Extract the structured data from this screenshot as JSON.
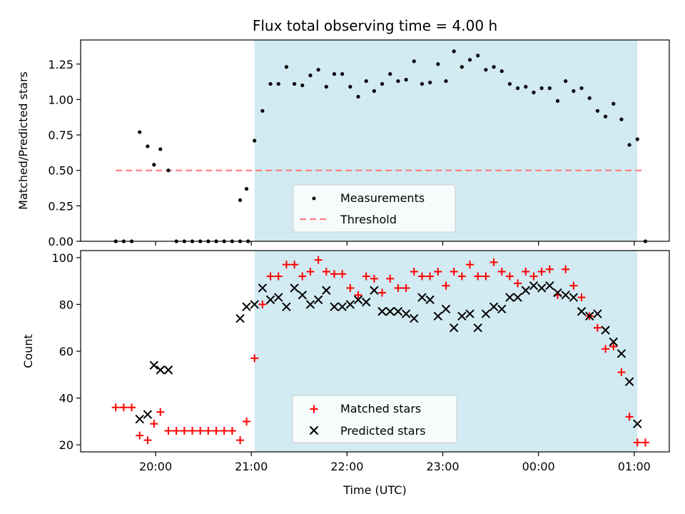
{
  "chart_data": [
    {
      "type": "scatter",
      "title": "Flux total observing time = 4.00 h",
      "ylabel": "Matched/Predicted stars",
      "ylim": [
        0,
        1.42
      ],
      "yticks": [
        "0.00",
        "0.25",
        "0.50",
        "0.75",
        "1.00",
        "1.25"
      ],
      "shaded_span": {
        "x": [
          "2024-01-01T21:02",
          "2024-01-02T01:02"
        ],
        "color": "#add8e6"
      },
      "series": [
        {
          "name": "Measurements",
          "marker": "dot",
          "color": "#000000",
          "points": [
            [
              "2024-01-01T19:35",
              0
            ],
            [
              "2024-01-01T19:40",
              0
            ],
            [
              "2024-01-01T19:45",
              0
            ],
            [
              "2024-01-01T19:50",
              0.77
            ],
            [
              "2024-01-01T19:55",
              0.67
            ],
            [
              "2024-01-01T19:59",
              0.54
            ],
            [
              "2024-01-01T20:03",
              0.65
            ],
            [
              "2024-01-01T20:08",
              0.5
            ],
            [
              "2024-01-01T20:13",
              0
            ],
            [
              "2024-01-01T20:18",
              0
            ],
            [
              "2024-01-01T20:23",
              0
            ],
            [
              "2024-01-01T20:28",
              0
            ],
            [
              "2024-01-01T20:33",
              0
            ],
            [
              "2024-01-01T20:38",
              0
            ],
            [
              "2024-01-01T20:43",
              0
            ],
            [
              "2024-01-01T20:48",
              0
            ],
            [
              "2024-01-01T20:53",
              0
            ],
            [
              "2024-01-01T20:58",
              0
            ],
            [
              "2024-01-01T20:53",
              0.29
            ],
            [
              "2024-01-01T20:57",
              0.37
            ],
            [
              "2024-01-01T21:02",
              0.71
            ],
            [
              "2024-01-01T21:07",
              0.92
            ],
            [
              "2024-01-01T21:12",
              1.11
            ],
            [
              "2024-01-01T21:17",
              1.11
            ],
            [
              "2024-01-01T21:22",
              1.23
            ],
            [
              "2024-01-01T21:27",
              1.11
            ],
            [
              "2024-01-01T21:32",
              1.1
            ],
            [
              "2024-01-01T21:37",
              1.17
            ],
            [
              "2024-01-01T21:42",
              1.21
            ],
            [
              "2024-01-01T21:47",
              1.09
            ],
            [
              "2024-01-01T21:52",
              1.18
            ],
            [
              "2024-01-01T21:57",
              1.18
            ],
            [
              "2024-01-01T22:02",
              1.09
            ],
            [
              "2024-01-01T22:07",
              1.02
            ],
            [
              "2024-01-01T22:12",
              1.13
            ],
            [
              "2024-01-01T22:17",
              1.06
            ],
            [
              "2024-01-01T22:22",
              1.11
            ],
            [
              "2024-01-01T22:27",
              1.18
            ],
            [
              "2024-01-01T22:32",
              1.13
            ],
            [
              "2024-01-01T22:37",
              1.14
            ],
            [
              "2024-01-01T22:42",
              1.27
            ],
            [
              "2024-01-01T22:47",
              1.11
            ],
            [
              "2024-01-01T22:52",
              1.12
            ],
            [
              "2024-01-01T22:57",
              1.25
            ],
            [
              "2024-01-01T23:02",
              1.13
            ],
            [
              "2024-01-01T23:07",
              1.34
            ],
            [
              "2024-01-01T23:12",
              1.23
            ],
            [
              "2024-01-01T23:17",
              1.28
            ],
            [
              "2024-01-01T23:22",
              1.31
            ],
            [
              "2024-01-01T23:27",
              1.21
            ],
            [
              "2024-01-01T23:32",
              1.23
            ],
            [
              "2024-01-01T23:37",
              1.2
            ],
            [
              "2024-01-01T23:42",
              1.11
            ],
            [
              "2024-01-01T23:47",
              1.08
            ],
            [
              "2024-01-01T23:52",
              1.09
            ],
            [
              "2024-01-01T23:57",
              1.05
            ],
            [
              "2024-01-02T00:02",
              1.08
            ],
            [
              "2024-01-02T00:07",
              1.08
            ],
            [
              "2024-01-02T00:12",
              0.99
            ],
            [
              "2024-01-02T00:17",
              1.13
            ],
            [
              "2024-01-02T00:22",
              1.06
            ],
            [
              "2024-01-02T00:27",
              1.08
            ],
            [
              "2024-01-02T00:32",
              1.01
            ],
            [
              "2024-01-02T00:37",
              0.92
            ],
            [
              "2024-01-02T00:42",
              0.88
            ],
            [
              "2024-01-02T00:47",
              0.97
            ],
            [
              "2024-01-02T00:52",
              0.86
            ],
            [
              "2024-01-02T00:57",
              0.68
            ],
            [
              "2024-01-02T01:02",
              0.72
            ],
            [
              "2024-01-02T01:07",
              0
            ]
          ]
        },
        {
          "name": "Threshold",
          "marker": "dashed-line",
          "color": "#ff7777",
          "points": [
            [
              "2024-01-01T19:35",
              0.5
            ],
            [
              "2024-01-02T01:07",
              0.5
            ]
          ]
        }
      ],
      "legend": "lower-center"
    },
    {
      "type": "scatter",
      "xlabel": "Time (UTC)",
      "ylabel": "Count",
      "ylim": [
        17,
        103
      ],
      "yticks": [
        "20",
        "40",
        "60",
        "80",
        "100"
      ],
      "xticks": [
        {
          "t": "2024-01-01T20:00",
          "label": "20:00"
        },
        {
          "t": "2024-01-01T21:00",
          "label": "21:00"
        },
        {
          "t": "2024-01-01T22:00",
          "label": "22:00"
        },
        {
          "t": "2024-01-01T23:00",
          "label": "23:00"
        },
        {
          "t": "2024-01-02T00:00",
          "label": "00:00"
        },
        {
          "t": "2024-01-02T01:00",
          "label": "01:00"
        }
      ],
      "xlim": [
        "2024-01-01T19:13",
        "2024-01-02T01:22"
      ],
      "shaded_span": {
        "x": [
          "2024-01-01T21:02",
          "2024-01-02T01:02"
        ],
        "color": "#add8e6"
      },
      "series": [
        {
          "name": "Matched stars",
          "marker": "plus",
          "color": "#ff0000",
          "points": [
            [
              "2024-01-01T19:35",
              36
            ],
            [
              "2024-01-01T19:40",
              36
            ],
            [
              "2024-01-01T19:45",
              36
            ],
            [
              "2024-01-01T19:50",
              24
            ],
            [
              "2024-01-01T19:55",
              22
            ],
            [
              "2024-01-01T19:59",
              29
            ],
            [
              "2024-01-01T20:03",
              34
            ],
            [
              "2024-01-01T20:08",
              26
            ],
            [
              "2024-01-01T20:13",
              26
            ],
            [
              "2024-01-01T20:18",
              26
            ],
            [
              "2024-01-01T20:23",
              26
            ],
            [
              "2024-01-01T20:28",
              26
            ],
            [
              "2024-01-01T20:33",
              26
            ],
            [
              "2024-01-01T20:38",
              26
            ],
            [
              "2024-01-01T20:43",
              26
            ],
            [
              "2024-01-01T20:48",
              26
            ],
            [
              "2024-01-01T20:53",
              22
            ],
            [
              "2024-01-01T20:57",
              30
            ],
            [
              "2024-01-01T21:02",
              57
            ],
            [
              "2024-01-01T21:07",
              80
            ],
            [
              "2024-01-01T21:12",
              92
            ],
            [
              "2024-01-01T21:17",
              92
            ],
            [
              "2024-01-01T21:22",
              97
            ],
            [
              "2024-01-01T21:27",
              97
            ],
            [
              "2024-01-01T21:32",
              92
            ],
            [
              "2024-01-01T21:37",
              94
            ],
            [
              "2024-01-01T21:42",
              99
            ],
            [
              "2024-01-01T21:47",
              94
            ],
            [
              "2024-01-01T21:52",
              93
            ],
            [
              "2024-01-01T21:57",
              93
            ],
            [
              "2024-01-01T22:02",
              87
            ],
            [
              "2024-01-01T22:07",
              84
            ],
            [
              "2024-01-01T22:12",
              92
            ],
            [
              "2024-01-01T22:17",
              91
            ],
            [
              "2024-01-01T22:22",
              85
            ],
            [
              "2024-01-01T22:27",
              91
            ],
            [
              "2024-01-01T22:32",
              87
            ],
            [
              "2024-01-01T22:37",
              87
            ],
            [
              "2024-01-01T22:42",
              94
            ],
            [
              "2024-01-01T22:47",
              92
            ],
            [
              "2024-01-01T22:52",
              92
            ],
            [
              "2024-01-01T22:57",
              94
            ],
            [
              "2024-01-01T23:02",
              88
            ],
            [
              "2024-01-01T23:07",
              94
            ],
            [
              "2024-01-01T23:12",
              92
            ],
            [
              "2024-01-01T23:17",
              97
            ],
            [
              "2024-01-01T23:22",
              92
            ],
            [
              "2024-01-01T23:27",
              92
            ],
            [
              "2024-01-01T23:32",
              98
            ],
            [
              "2024-01-01T23:37",
              94
            ],
            [
              "2024-01-01T23:42",
              92
            ],
            [
              "2024-01-01T23:47",
              89
            ],
            [
              "2024-01-01T23:52",
              94
            ],
            [
              "2024-01-01T23:57",
              92
            ],
            [
              "2024-01-02T00:02",
              94
            ],
            [
              "2024-01-02T00:07",
              95
            ],
            [
              "2024-01-02T00:12",
              84
            ],
            [
              "2024-01-02T00:17",
              95
            ],
            [
              "2024-01-02T00:22",
              88
            ],
            [
              "2024-01-02T00:27",
              83
            ],
            [
              "2024-01-02T00:32",
              75
            ],
            [
              "2024-01-02T00:37",
              70
            ],
            [
              "2024-01-02T00:42",
              61
            ],
            [
              "2024-01-02T00:47",
              62
            ],
            [
              "2024-01-02T00:52",
              51
            ],
            [
              "2024-01-02T00:57",
              32
            ],
            [
              "2024-01-02T01:02",
              21
            ],
            [
              "2024-01-02T01:07",
              21
            ]
          ]
        },
        {
          "name": "Predicted stars",
          "marker": "x",
          "color": "#000000",
          "points": [
            [
              "2024-01-01T19:50",
              31
            ],
            [
              "2024-01-01T19:55",
              33
            ],
            [
              "2024-01-01T19:59",
              54
            ],
            [
              "2024-01-01T20:03",
              52
            ],
            [
              "2024-01-01T20:08",
              52
            ],
            [
              "2024-01-01T20:53",
              74
            ],
            [
              "2024-01-01T20:57",
              79
            ],
            [
              "2024-01-01T21:02",
              80
            ],
            [
              "2024-01-01T21:07",
              87
            ],
            [
              "2024-01-01T21:12",
              82
            ],
            [
              "2024-01-01T21:17",
              83
            ],
            [
              "2024-01-01T21:22",
              79
            ],
            [
              "2024-01-01T21:27",
              87
            ],
            [
              "2024-01-01T21:32",
              84
            ],
            [
              "2024-01-01T21:37",
              80
            ],
            [
              "2024-01-01T21:42",
              82
            ],
            [
              "2024-01-01T21:47",
              86
            ],
            [
              "2024-01-01T21:52",
              79
            ],
            [
              "2024-01-01T21:57",
              79
            ],
            [
              "2024-01-01T22:02",
              80
            ],
            [
              "2024-01-01T22:07",
              82
            ],
            [
              "2024-01-01T22:12",
              81
            ],
            [
              "2024-01-01T22:17",
              86
            ],
            [
              "2024-01-01T22:22",
              77
            ],
            [
              "2024-01-01T22:27",
              77
            ],
            [
              "2024-01-01T22:32",
              77
            ],
            [
              "2024-01-01T22:37",
              76
            ],
            [
              "2024-01-01T22:42",
              74
            ],
            [
              "2024-01-01T22:47",
              83
            ],
            [
              "2024-01-01T22:52",
              82
            ],
            [
              "2024-01-01T22:57",
              75
            ],
            [
              "2024-01-01T23:02",
              78
            ],
            [
              "2024-01-01T23:07",
              70
            ],
            [
              "2024-01-01T23:12",
              75
            ],
            [
              "2024-01-01T23:17",
              76
            ],
            [
              "2024-01-01T23:22",
              70
            ],
            [
              "2024-01-01T23:27",
              76
            ],
            [
              "2024-01-01T23:32",
              79
            ],
            [
              "2024-01-01T23:37",
              78
            ],
            [
              "2024-01-01T23:42",
              83
            ],
            [
              "2024-01-01T23:47",
              83
            ],
            [
              "2024-01-01T23:52",
              86
            ],
            [
              "2024-01-01T23:57",
              88
            ],
            [
              "2024-01-02T00:02",
              87
            ],
            [
              "2024-01-02T00:07",
              88
            ],
            [
              "2024-01-02T00:12",
              85
            ],
            [
              "2024-01-02T00:17",
              84
            ],
            [
              "2024-01-02T00:22",
              83
            ],
            [
              "2024-01-02T00:27",
              77
            ],
            [
              "2024-01-02T00:32",
              75
            ],
            [
              "2024-01-02T00:37",
              76
            ],
            [
              "2024-01-02T00:42",
              69
            ],
            [
              "2024-01-02T00:47",
              64
            ],
            [
              "2024-01-02T00:52",
              59
            ],
            [
              "2024-01-02T00:57",
              47
            ],
            [
              "2024-01-02T01:02",
              29
            ]
          ]
        }
      ],
      "legend": "lower-center"
    }
  ]
}
